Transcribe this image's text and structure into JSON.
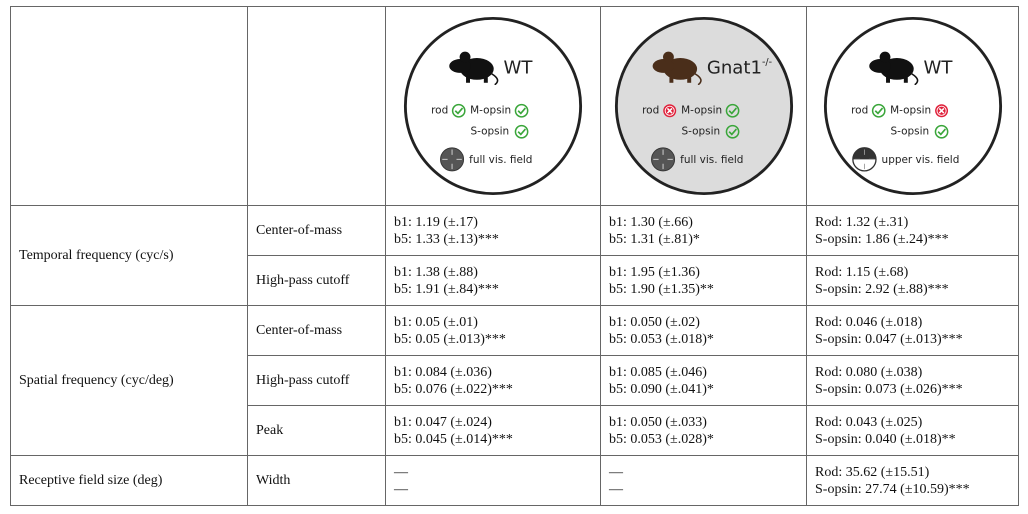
{
  "header": {
    "columns": [
      {
        "strain": "WT",
        "rod": "rod",
        "m_opsin": "M-opsin",
        "s_opsin": "S-opsin",
        "field": "full vis. field"
      },
      {
        "strain": "Gnat1",
        "strain_sup": "-/-",
        "rod": "rod",
        "m_opsin": "M-opsin",
        "s_opsin": "S-opsin",
        "field": "full vis. field"
      },
      {
        "strain": "WT",
        "rod": "rod",
        "m_opsin": "M-opsin",
        "s_opsin": "S-opsin",
        "field": "upper vis. field"
      }
    ]
  },
  "table": {
    "groups": [
      "Temporal frequency (cyc/s)",
      "Spatial frequency (cyc/deg)",
      "Receptive field size (deg)"
    ],
    "rows": [
      {
        "measure": "Center-of-mass",
        "cells": [
          [
            "b1: 1.19 (±.17)",
            "b5: 1.33 (±.13)***"
          ],
          [
            "b1: 1.30 (±.66)",
            "b5: 1.31 (±.81)*"
          ],
          [
            "Rod: 1.32 (±.31)",
            "S-opsin: 1.86 (±.24)***"
          ]
        ]
      },
      {
        "measure": "High-pass cutoff",
        "cells": [
          [
            "b1: 1.38 (±.88)",
            "b5: 1.91 (±.84)***"
          ],
          [
            "b1: 1.95 (±1.36)",
            "b5: 1.90 (±1.35)**"
          ],
          [
            "Rod: 1.15 (±.68)",
            "S-opsin: 2.92 (±.88)***"
          ]
        ]
      },
      {
        "measure": "Center-of-mass",
        "cells": [
          [
            "b1: 0.05 (±.01)",
            "b5: 0.05 (±.013)***"
          ],
          [
            "b1: 0.050 (±.02)",
            "b5: 0.053 (±.018)*"
          ],
          [
            "Rod: 0.046 (±.018)",
            "S-opsin: 0.047 (±.013)***"
          ]
        ]
      },
      {
        "measure": "High-pass cutoff",
        "cells": [
          [
            "b1: 0.084 (±.036)",
            "b5: 0.076 (±.022)***"
          ],
          [
            "b1: 0.085 (±.046)",
            "b5: 0.090 (±.041)*"
          ],
          [
            "Rod: 0.080 (±.038)",
            "S-opsin: 0.073 (±.026)***"
          ]
        ]
      },
      {
        "measure": "Peak",
        "cells": [
          [
            "b1: 0.047 (±.024)",
            "b5: 0.045 (±.014)***"
          ],
          [
            "b1: 0.050 (±.033)",
            "b5: 0.053 (±.028)*"
          ],
          [
            "Rod: 0.043 (±.025)",
            "S-opsin: 0.040 (±.018)**"
          ]
        ]
      },
      {
        "measure": "Width",
        "cells": [
          [
            "—",
            "—"
          ],
          [
            "—",
            "—"
          ],
          [
            "Rod: 35.62 (±15.51)",
            "S-opsin: 27.74 (±10.59)***"
          ]
        ]
      }
    ]
  }
}
